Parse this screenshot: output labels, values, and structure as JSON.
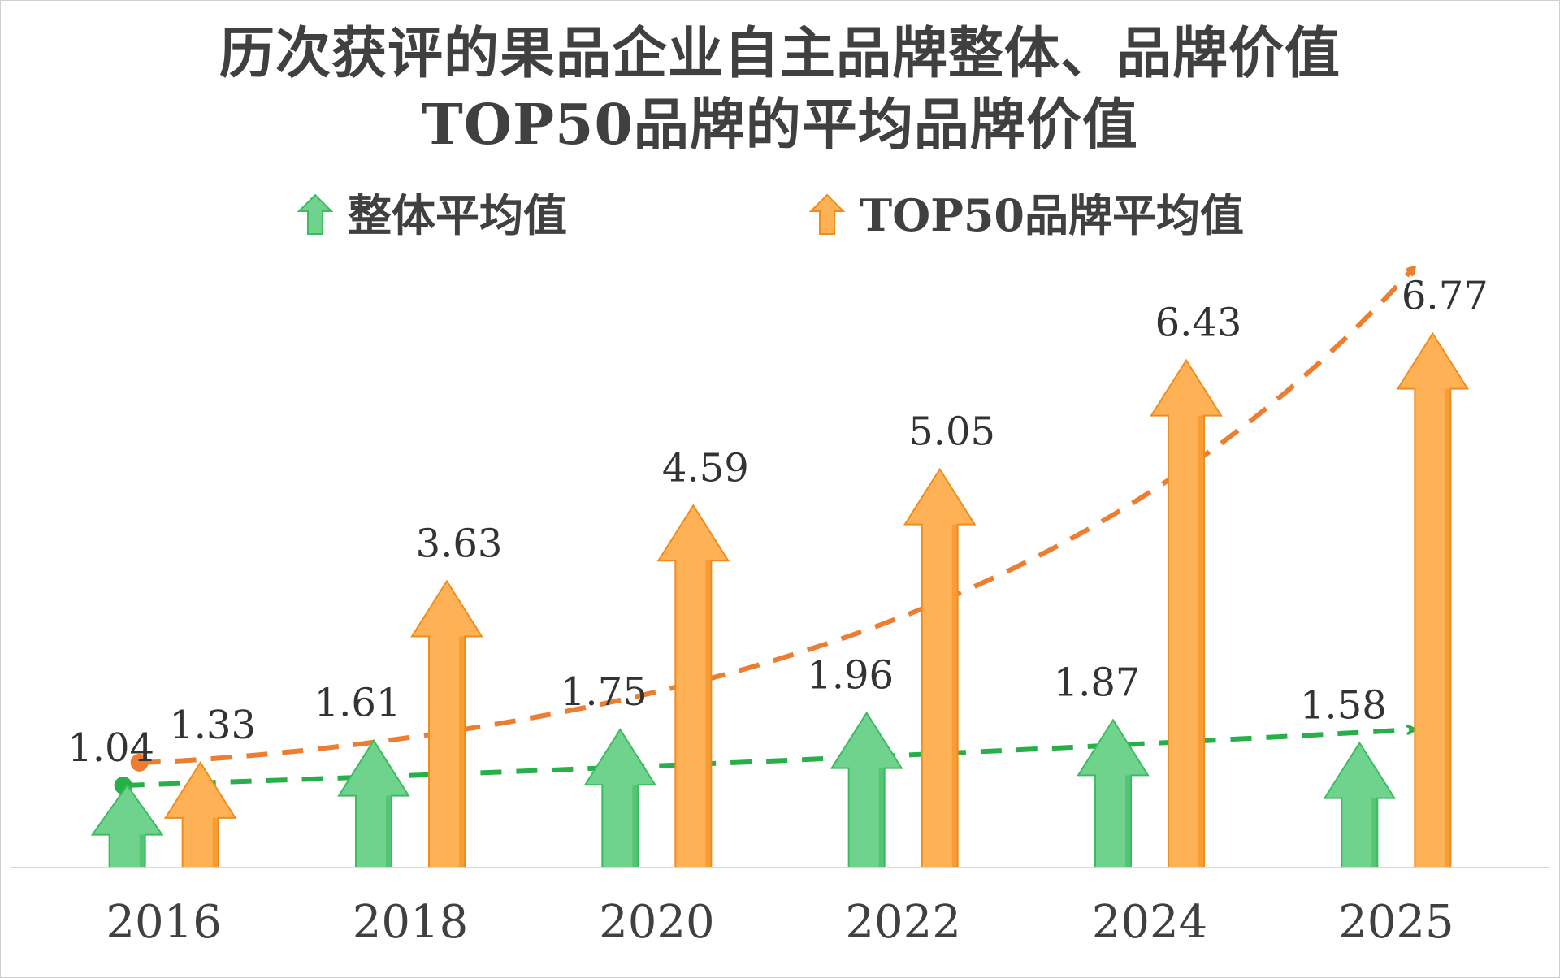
{
  "chart_data": {
    "type": "bar",
    "title": [
      "历次获评的果品企业自主品牌整体、品牌价值",
      "TOP50品牌的平均品牌价值"
    ],
    "categories": [
      "2016",
      "2018",
      "2020",
      "2022",
      "2024",
      "2025"
    ],
    "series": [
      {
        "name": "整体平均值",
        "values": [
          1.04,
          1.61,
          1.75,
          1.96,
          1.87,
          1.58
        ],
        "labels": [
          "1.04",
          "1.61",
          "1.75",
          "1.96",
          "1.87",
          "1.58"
        ],
        "color": "#6fd38e",
        "edge_color": "#3dbb62",
        "trend_color": "#27b04a"
      },
      {
        "name": "TOP50品牌平均值",
        "values": [
          1.33,
          3.63,
          4.59,
          5.05,
          6.43,
          6.77
        ],
        "labels": [
          "1.33",
          "3.63",
          "4.59",
          "5.05",
          "6.43",
          "6.77"
        ],
        "color": "#ffb155",
        "edge_color": "#f08c1e",
        "trend_color": "#ed7d31"
      }
    ],
    "ylim": [
      0,
      7.6
    ],
    "xlabel": "",
    "ylabel": "",
    "grid": false,
    "legend": "top",
    "mark_shape": "upward-arrow",
    "trendlines": "dashed-with-arrowhead"
  }
}
